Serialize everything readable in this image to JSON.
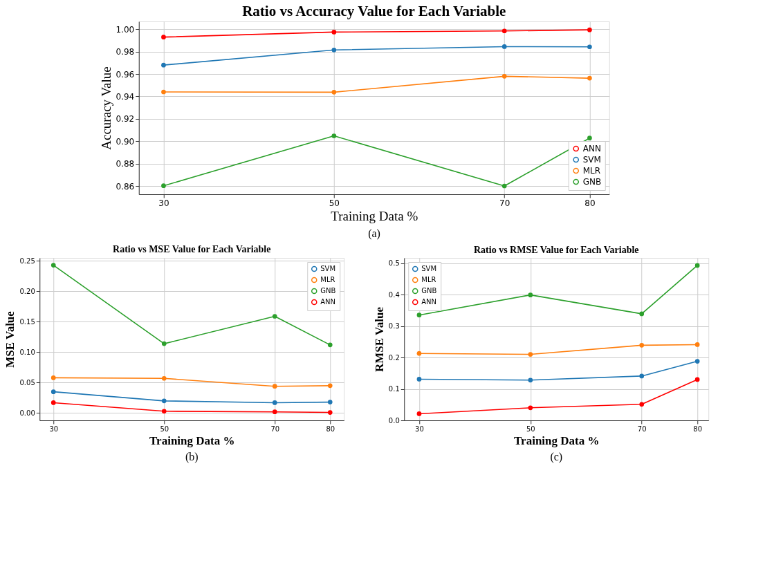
{
  "chart_data": [
    {
      "type": "line",
      "title": "Ratio vs Accuracy Value for Each Variable",
      "xlabel": "Training Data %",
      "ylabel": "Accuracy Value",
      "annotations": [
        "(a)"
      ],
      "x": [
        30,
        50,
        70,
        80
      ],
      "xlim": [
        27.1,
        82.3
      ],
      "xticks": [
        30,
        50,
        70,
        80
      ],
      "ylim": [
        0.8526,
        1.007
      ],
      "yticks": [
        0.86,
        0.88,
        {
          "value": 0.9,
          "label": "0.90"
        },
        0.92,
        0.94,
        0.96,
        0.98,
        {
          "value": 1,
          "label": "1.00"
        }
      ],
      "grid": true,
      "legend": "bottom right",
      "marker": "circle",
      "line_style": "solid",
      "series": [
        {
          "name": "ANN",
          "color": "#ff0000",
          "values": [
            0.993,
            0.9975,
            0.9985,
            0.9995
          ]
        },
        {
          "name": "SVM",
          "color": "#1f77b4",
          "values": [
            0.968,
            0.9815,
            0.9845,
            0.9843
          ]
        },
        {
          "name": "MLR",
          "color": "#ff7f0e",
          "values": [
            0.944,
            0.9438,
            0.958,
            0.9563
          ]
        },
        {
          "name": "GNB",
          "color": "#2ca02c",
          "values": [
            0.8602,
            0.9048,
            0.86,
            0.9028
          ]
        }
      ]
    },
    {
      "type": "line",
      "title": "Ratio vs MSE Value for Each Variable",
      "xlabel": "Training Data %",
      "ylabel": "MSE Value",
      "annotations": [
        "(b)"
      ],
      "x": [
        30,
        50,
        70,
        80
      ],
      "xlim": [
        27.5,
        82.5
      ],
      "xticks": [
        30,
        50,
        70,
        80
      ],
      "ylim": [
        -0.012,
        0.255
      ],
      "yticks": [
        {
          "value": 0,
          "label": "0.00"
        },
        0.05,
        {
          "value": 0.1,
          "label": "0.10"
        },
        0.15,
        {
          "value": 0.2,
          "label": "0.20"
        },
        0.25
      ],
      "grid": true,
      "legend": "top right",
      "marker": "circle",
      "line_style": "solid",
      "series": [
        {
          "name": "SVM",
          "color": "#1f77b4",
          "values": [
            0.035,
            0.02,
            0.017,
            0.018
          ]
        },
        {
          "name": "MLR",
          "color": "#ff7f0e",
          "values": [
            0.058,
            0.057,
            0.044,
            0.045
          ]
        },
        {
          "name": "GNB",
          "color": "#2ca02c",
          "values": [
            0.243,
            0.114,
            0.159,
            0.112
          ]
        },
        {
          "name": "ANN",
          "color": "#ff0000",
          "values": [
            0.017,
            0.003,
            0.002,
            0.001
          ]
        }
      ]
    },
    {
      "type": "line",
      "title": "Ratio vs RMSE Value for Each Variable",
      "xlabel": "Training Data %",
      "ylabel": "RMSE Value",
      "annotations": [
        "(c)"
      ],
      "x": [
        30,
        50,
        70,
        80
      ],
      "xlim": [
        27.3,
        82
      ],
      "xticks": [
        30,
        50,
        70,
        80
      ],
      "ylim": [
        0,
        0.517
      ],
      "yticks": [
        {
          "value": 0,
          "label": "0.0"
        },
        0.1,
        0.2,
        0.3,
        0.4,
        0.5
      ],
      "grid": true,
      "legend": "top left",
      "marker": "circle",
      "line_style": "solid",
      "series": [
        {
          "name": "SVM",
          "color": "#1f77b4",
          "values": [
            0.131,
            0.128,
            0.141,
            0.188
          ]
        },
        {
          "name": "MLR",
          "color": "#ff7f0e",
          "values": [
            0.213,
            0.21,
            0.239,
            0.241
          ]
        },
        {
          "name": "GNB",
          "color": "#2ca02c",
          "values": [
            0.335,
            0.399,
            0.339,
            0.493
          ]
        },
        {
          "name": "ANN",
          "color": "#ff0000",
          "values": [
            0.021,
            0.04,
            0.051,
            0.13
          ]
        }
      ]
    }
  ]
}
